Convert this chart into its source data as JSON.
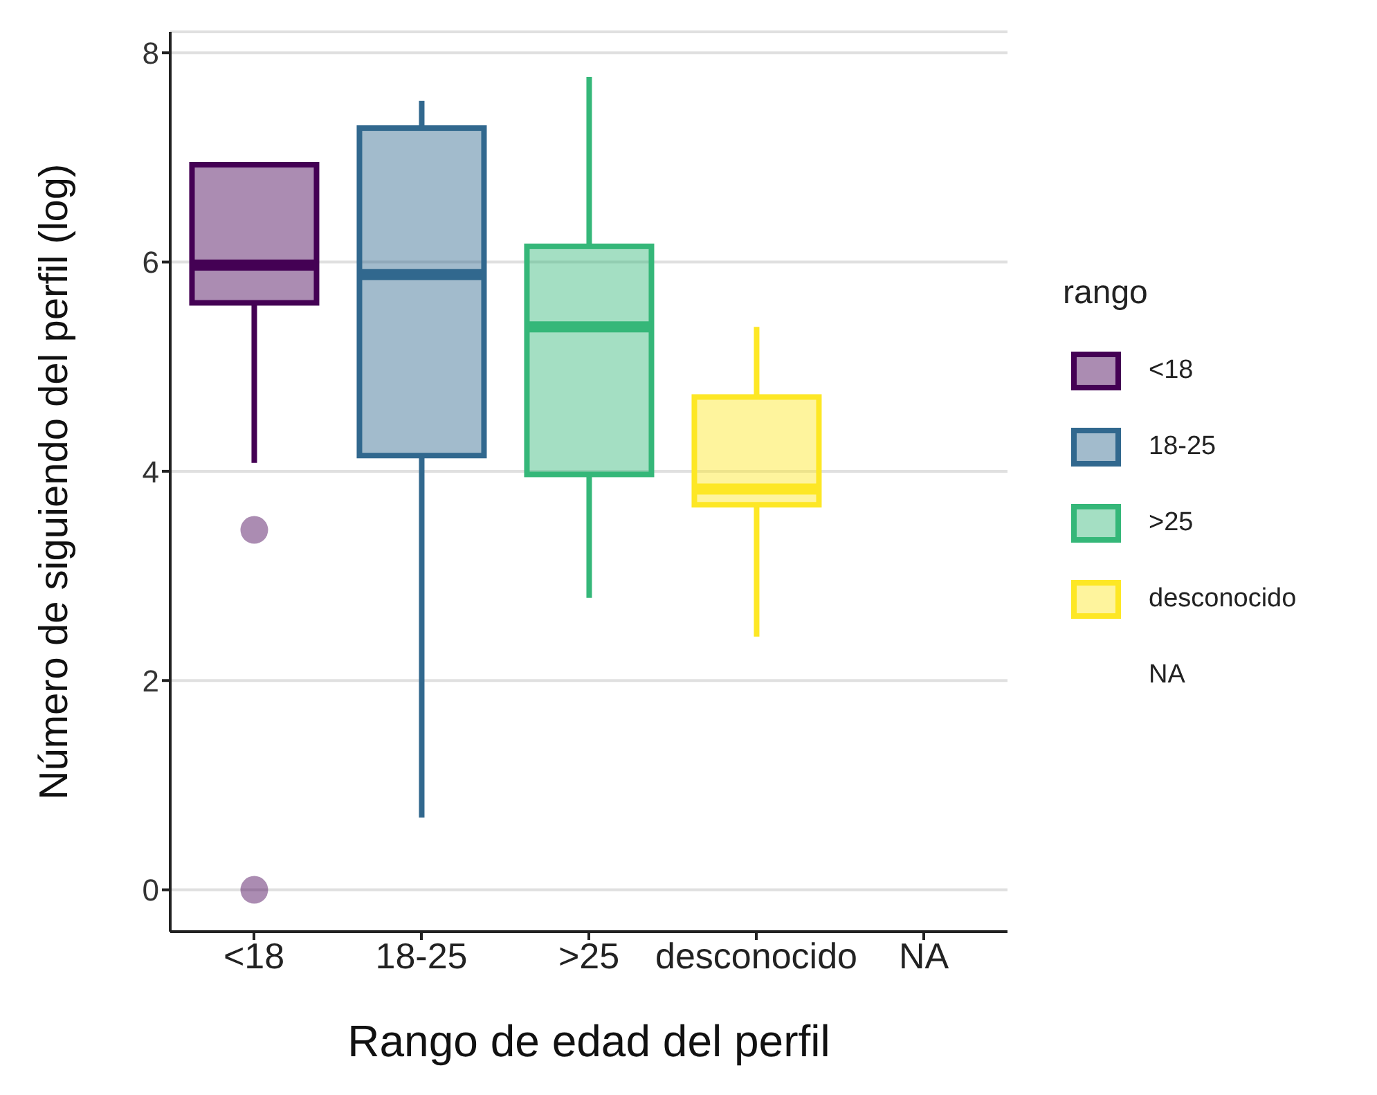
{
  "chart_data": {
    "type": "box",
    "xlabel": "Rango de edad del perfil",
    "ylabel": "Número de siguiendo del perfil (log)",
    "legend_title": "rango",
    "legend": "right",
    "grid": "y",
    "categories": [
      "<18",
      "18-25",
      ">25",
      "desconocido",
      "NA"
    ],
    "series": [
      {
        "name": "<18",
        "color": "#440154",
        "boxes": [
          {
            "low": 4.08,
            "q1": 5.61,
            "median": 5.97,
            "q3": 6.93,
            "high": 6.93,
            "outliers": [
              3.44,
              0
            ]
          },
          null,
          null,
          null,
          null
        ]
      },
      {
        "name": "18-25",
        "color": "#31688e",
        "boxes": [
          null,
          {
            "low": 0.69,
            "q1": 4.15,
            "median": 5.88,
            "q3": 7.28,
            "high": 7.54
          },
          null,
          null,
          null
        ]
      },
      {
        "name": ">25",
        "color": "#35b779",
        "boxes": [
          null,
          null,
          {
            "low": 2.79,
            "q1": 3.97,
            "median": 5.38,
            "q3": 6.15,
            "high": 7.77
          },
          null,
          null
        ]
      },
      {
        "name": "desconocido",
        "color": "#fde725",
        "boxes": [
          null,
          null,
          null,
          {
            "low": 2.42,
            "q1": 3.68,
            "median": 3.83,
            "q3": 4.71,
            "high": 5.38
          },
          null
        ]
      },
      {
        "name": "NA",
        "color": null,
        "boxes": [
          null,
          null,
          null,
          null,
          null
        ]
      }
    ],
    "ylim": [
      -0.4,
      8.2
    ],
    "yticks": [
      0,
      2,
      4,
      6,
      8
    ]
  }
}
